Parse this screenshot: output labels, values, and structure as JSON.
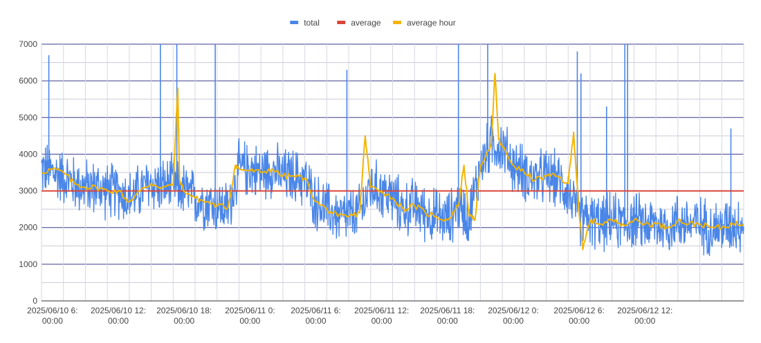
{
  "chart_data": {
    "type": "line",
    "title": "",
    "xlabel": "",
    "ylabel": "",
    "ylim": [
      0,
      7000
    ],
    "yticks": [
      0,
      1000,
      2000,
      3000,
      4000,
      5000,
      6000,
      7000
    ],
    "xlim": [
      "2025-06-10 05:00",
      "2025-06-12 21:00"
    ],
    "xticks": [
      {
        "time": "2025-06-10 06:00",
        "line1": "2025/06/10 6:",
        "line2": "00:00"
      },
      {
        "time": "2025-06-10 12:00",
        "line1": "2025/06/10 12:",
        "line2": "00:00"
      },
      {
        "time": "2025-06-10 18:00",
        "line1": "2025/06/10 18:",
        "line2": "00:00"
      },
      {
        "time": "2025-06-11 00:00",
        "line1": "2025/06/11 0:",
        "line2": "00:00"
      },
      {
        "time": "2025-06-11 06:00",
        "line1": "2025/06/11 6:",
        "line2": "00:00"
      },
      {
        "time": "2025-06-11 12:00",
        "line1": "2025/06/11 12:",
        "line2": "00:00"
      },
      {
        "time": "2025-06-11 18:00",
        "line1": "2025/06/11 18:",
        "line2": "00:00"
      },
      {
        "time": "2025-06-12 00:00",
        "line1": "2025/06/12 0:",
        "line2": "00:00"
      },
      {
        "time": "2025-06-12 06:00",
        "line1": "2025/06/12 6:",
        "line2": "00:00"
      },
      {
        "time": "2025-06-12 12:00",
        "line1": "2025/06/12 12:",
        "line2": "00:00"
      }
    ],
    "grid": true,
    "legend_position": "top",
    "series": [
      {
        "name": "total",
        "color": "#4a86e8",
        "points": [
          [
            "2025-06-10 05:00",
            3600
          ],
          [
            "2025-06-10 06:00",
            3500
          ],
          [
            "2025-06-10 07:00",
            3400
          ],
          [
            "2025-06-10 08:00",
            3200
          ],
          [
            "2025-06-10 09:00",
            3100
          ],
          [
            "2025-06-10 10:00",
            3100
          ],
          [
            "2025-06-10 11:00",
            3000
          ],
          [
            "2025-06-10 12:00",
            3000
          ],
          [
            "2025-06-10 13:00",
            2800
          ],
          [
            "2025-06-10 14:00",
            3000
          ],
          [
            "2025-06-10 15:00",
            3200
          ],
          [
            "2025-06-10 16:00",
            3100
          ],
          [
            "2025-06-10 17:00",
            3200
          ],
          [
            "2025-06-10 18:00",
            3000
          ],
          [
            "2025-06-10 19:00",
            2800
          ],
          [
            "2025-06-10 20:00",
            2700
          ],
          [
            "2025-06-10 21:00",
            2600
          ],
          [
            "2025-06-10 22:00",
            2500
          ],
          [
            "2025-06-10 23:00",
            3600
          ],
          [
            "2025-06-11 00:00",
            3600
          ],
          [
            "2025-06-11 01:00",
            3500
          ],
          [
            "2025-06-11 02:00",
            3600
          ],
          [
            "2025-06-11 03:00",
            3400
          ],
          [
            "2025-06-11 04:00",
            3400
          ],
          [
            "2025-06-11 05:00",
            3300
          ],
          [
            "2025-06-11 06:00",
            2700
          ],
          [
            "2025-06-11 07:00",
            2500
          ],
          [
            "2025-06-11 08:00",
            2300
          ],
          [
            "2025-06-11 09:00",
            2300
          ],
          [
            "2025-06-11 10:00",
            2400
          ],
          [
            "2025-06-11 11:00",
            3100
          ],
          [
            "2025-06-11 12:00",
            3000
          ],
          [
            "2025-06-11 13:00",
            2800
          ],
          [
            "2025-06-11 14:00",
            2500
          ],
          [
            "2025-06-11 15:00",
            2600
          ],
          [
            "2025-06-11 16:00",
            2400
          ],
          [
            "2025-06-11 17:00",
            2300
          ],
          [
            "2025-06-11 18:00",
            2200
          ],
          [
            "2025-06-11 19:00",
            2600
          ],
          [
            "2025-06-11 20:00",
            2300
          ],
          [
            "2025-06-11 21:00",
            3700
          ],
          [
            "2025-06-11 22:00",
            4300
          ],
          [
            "2025-06-11 23:00",
            4200
          ],
          [
            "2025-06-12 00:00",
            3700
          ],
          [
            "2025-06-12 01:00",
            3500
          ],
          [
            "2025-06-12 02:00",
            3300
          ],
          [
            "2025-06-12 03:00",
            3400
          ],
          [
            "2025-06-12 04:00",
            3300
          ],
          [
            "2025-06-12 05:00",
            3000
          ],
          [
            "2025-06-12 06:00",
            2300
          ],
          [
            "2025-06-12 07:00",
            2200
          ],
          [
            "2025-06-12 08:00",
            2100
          ],
          [
            "2025-06-12 09:00",
            2200
          ],
          [
            "2025-06-12 10:00",
            2100
          ],
          [
            "2025-06-12 11:00",
            2200
          ],
          [
            "2025-06-12 12:00",
            2100
          ],
          [
            "2025-06-12 13:00",
            2100
          ],
          [
            "2025-06-12 14:00",
            2000
          ],
          [
            "2025-06-12 15:00",
            2200
          ],
          [
            "2025-06-12 16:00",
            2100
          ],
          [
            "2025-06-12 17:00",
            2100
          ],
          [
            "2025-06-12 18:00",
            2000
          ],
          [
            "2025-06-12 19:00",
            2000
          ],
          [
            "2025-06-12 20:00",
            2100
          ],
          [
            "2025-06-12 21:00",
            2100
          ]
        ],
        "noise_amplitude": 900,
        "spikes": [
          [
            "2025-06-10 05:40",
            6700
          ],
          [
            "2025-06-10 15:50",
            7000
          ],
          [
            "2025-06-10 17:20",
            7000
          ],
          [
            "2025-06-10 20:50",
            7000
          ],
          [
            "2025-06-11 08:50",
            6300
          ],
          [
            "2025-06-11 19:00",
            7000
          ],
          [
            "2025-06-11 21:40",
            7000
          ],
          [
            "2025-06-12 05:50",
            6800
          ],
          [
            "2025-06-12 06:10",
            6200
          ],
          [
            "2025-06-12 08:30",
            5300
          ],
          [
            "2025-06-12 10:10",
            7000
          ],
          [
            "2025-06-12 10:25",
            7000
          ],
          [
            "2025-06-12 19:50",
            4700
          ]
        ]
      },
      {
        "name": "average",
        "color": "#db4437",
        "points": [
          [
            "2025-06-10 05:00",
            3000
          ],
          [
            "2025-06-12 21:00",
            3000
          ]
        ]
      },
      {
        "name": "average hour",
        "color": "#f4b400",
        "points": [
          [
            "2025-06-10 05:00",
            3500
          ],
          [
            "2025-06-10 06:00",
            3600
          ],
          [
            "2025-06-10 07:00",
            3500
          ],
          [
            "2025-06-10 08:00",
            3200
          ],
          [
            "2025-06-10 09:00",
            3100
          ],
          [
            "2025-06-10 10:00",
            3100
          ],
          [
            "2025-06-10 11:00",
            3000
          ],
          [
            "2025-06-10 12:00",
            3000
          ],
          [
            "2025-06-10 13:00",
            2700
          ],
          [
            "2025-06-10 14:00",
            3000
          ],
          [
            "2025-06-10 15:00",
            3200
          ],
          [
            "2025-06-10 16:00",
            3100
          ],
          [
            "2025-06-10 17:00",
            3150
          ],
          [
            "2025-06-10 17:25",
            5800
          ],
          [
            "2025-06-10 17:35",
            3300
          ],
          [
            "2025-06-10 18:00",
            3000
          ],
          [
            "2025-06-10 19:00",
            2800
          ],
          [
            "2025-06-10 20:00",
            2700
          ],
          [
            "2025-06-10 21:00",
            2600
          ],
          [
            "2025-06-10 22:00",
            2550
          ],
          [
            "2025-06-10 22:40",
            3700
          ],
          [
            "2025-06-10 23:00",
            3600
          ],
          [
            "2025-06-11 00:00",
            3550
          ],
          [
            "2025-06-11 01:00",
            3500
          ],
          [
            "2025-06-11 02:00",
            3600
          ],
          [
            "2025-06-11 03:00",
            3400
          ],
          [
            "2025-06-11 04:00",
            3400
          ],
          [
            "2025-06-11 05:00",
            3350
          ],
          [
            "2025-06-11 06:00",
            2700
          ],
          [
            "2025-06-11 07:00",
            2500
          ],
          [
            "2025-06-11 08:00",
            2300
          ],
          [
            "2025-06-11 09:00",
            2300
          ],
          [
            "2025-06-11 10:00",
            2400
          ],
          [
            "2025-06-11 10:30",
            4500
          ],
          [
            "2025-06-11 11:00",
            3100
          ],
          [
            "2025-06-11 12:00",
            3000
          ],
          [
            "2025-06-11 13:00",
            2800
          ],
          [
            "2025-06-11 14:00",
            2500
          ],
          [
            "2025-06-11 15:00",
            2600
          ],
          [
            "2025-06-11 16:00",
            2400
          ],
          [
            "2025-06-11 17:00",
            2300
          ],
          [
            "2025-06-11 18:00",
            2200
          ],
          [
            "2025-06-11 19:00",
            2600
          ],
          [
            "2025-06-11 19:30",
            3700
          ],
          [
            "2025-06-11 20:00",
            2300
          ],
          [
            "2025-06-11 20:30",
            2200
          ],
          [
            "2025-06-11 21:00",
            3700
          ],
          [
            "2025-06-11 22:00",
            4300
          ],
          [
            "2025-06-11 22:20",
            6200
          ],
          [
            "2025-06-11 22:40",
            4400
          ],
          [
            "2025-06-11 23:00",
            4200
          ],
          [
            "2025-06-12 00:00",
            3700
          ],
          [
            "2025-06-12 01:00",
            3500
          ],
          [
            "2025-06-12 02:00",
            3300
          ],
          [
            "2025-06-12 03:00",
            3400
          ],
          [
            "2025-06-12 04:00",
            3400
          ],
          [
            "2025-06-12 05:00",
            3200
          ],
          [
            "2025-06-12 05:30",
            4600
          ],
          [
            "2025-06-12 06:00",
            2400
          ],
          [
            "2025-06-12 06:20",
            1400
          ],
          [
            "2025-06-12 07:00",
            2200
          ],
          [
            "2025-06-12 08:00",
            2100
          ],
          [
            "2025-06-12 09:00",
            2200
          ],
          [
            "2025-06-12 10:00",
            2100
          ],
          [
            "2025-06-12 11:00",
            2200
          ],
          [
            "2025-06-12 12:00",
            2100
          ],
          [
            "2025-06-12 13:00",
            2100
          ],
          [
            "2025-06-12 14:00",
            2000
          ],
          [
            "2025-06-12 15:00",
            2200
          ],
          [
            "2025-06-12 16:00",
            2100
          ],
          [
            "2025-06-12 17:00",
            2100
          ],
          [
            "2025-06-12 18:00",
            2000
          ],
          [
            "2025-06-12 19:00",
            2000
          ],
          [
            "2025-06-12 20:00",
            2100
          ],
          [
            "2025-06-12 21:00",
            2100
          ]
        ]
      }
    ]
  }
}
